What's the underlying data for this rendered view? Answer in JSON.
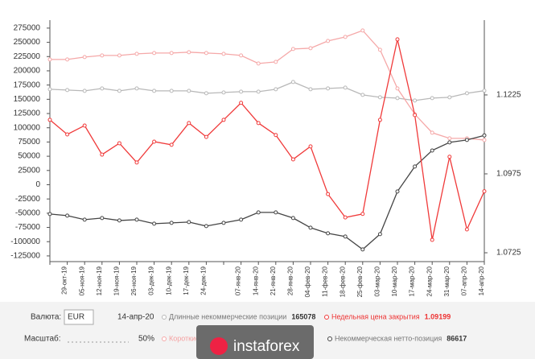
{
  "chart_data": {
    "type": "line",
    "categories": [
      null,
      "29-окт-19",
      "05-ноя-19",
      "12-ноя-19",
      "19-ноя-19",
      "26-ноя-19",
      "03-дек-19",
      "10-дек-19",
      "17-дек-19",
      "24-дек-19",
      null,
      "07-янв-20",
      "14-янв-20",
      "21-янв-20",
      "28-янв-20",
      "04-фев-20",
      "11-фев-20",
      "18-фев-20",
      "25-фев-20",
      "03-мар-20",
      "10-мар-20",
      "17-мар-20",
      "24-мар-20",
      "31-мар-20",
      "07-апр-20",
      "14-апр-20"
    ],
    "series": [
      {
        "name": "Длинные некоммерческие позиции",
        "color": "#b8b8b8",
        "values": [
          167600,
          166200,
          164800,
          169000,
          164800,
          169000,
          164800,
          164800,
          164800,
          160600,
          162000,
          163400,
          163400,
          167600,
          180400,
          167600,
          169000,
          170500,
          157700,
          153500,
          152100,
          147800,
          152100,
          153500,
          160600,
          165078
        ]
      },
      {
        "name": "Короткие некоммерческие позиции",
        "color": "#f5a8a8",
        "values": [
          219900,
          219900,
          224200,
          227000,
          227000,
          229800,
          231200,
          231200,
          232700,
          231200,
          229800,
          227000,
          212900,
          215700,
          238300,
          239700,
          252400,
          259500,
          270800,
          236900,
          169000,
          123800,
          91300,
          81400,
          81400,
          78500
        ]
      },
      {
        "name": "Некоммерческая нетто-позиция",
        "color": "#444444",
        "values": [
          -51400,
          -54300,
          -61300,
          -58500,
          -62800,
          -61300,
          -68400,
          -67000,
          -65600,
          -72600,
          -67000,
          -61300,
          -48600,
          -48600,
          -58500,
          -75500,
          -85400,
          -91000,
          -113600,
          -86800,
          -11900,
          31900,
          60100,
          74300,
          78600,
          86617
        ]
      },
      {
        "name": "Недельная цена закрытия",
        "color": "#f03a3a",
        "axis": "y2",
        "values": [
          1.1146,
          1.11,
          1.1128,
          1.1036,
          1.1072,
          1.1011,
          1.1077,
          1.1067,
          1.1136,
          1.1092,
          1.1146,
          1.12,
          1.1136,
          1.1098,
          1.1021,
          1.1062,
          1.0911,
          1.0837,
          1.0848,
          1.1146,
          1.1401,
          1.1161,
          1.0766,
          1.1029,
          1.0799,
          1.09199
        ]
      }
    ],
    "ylim": [
      -135000,
      289000
    ],
    "yticks": [
      -125000,
      -100000,
      -75000,
      -50000,
      -25000,
      0,
      25000,
      50000,
      75000,
      100000,
      125000,
      150000,
      175000,
      200000,
      225000,
      250000,
      275000
    ],
    "y2lim": [
      1.0697,
      1.1462
    ],
    "y2ticks": [
      1.0725,
      1.0975,
      1.1225
    ],
    "grid": false
  },
  "panel": {
    "currency_label": "Валюта:",
    "currency": "EUR",
    "date": "14-апр-20",
    "scale_label": "Масштаб:",
    "scale": "50%",
    "legend_values": [
      "165078",
      null,
      "86617",
      "1.09199"
    ],
    "logo": "instaforex"
  }
}
